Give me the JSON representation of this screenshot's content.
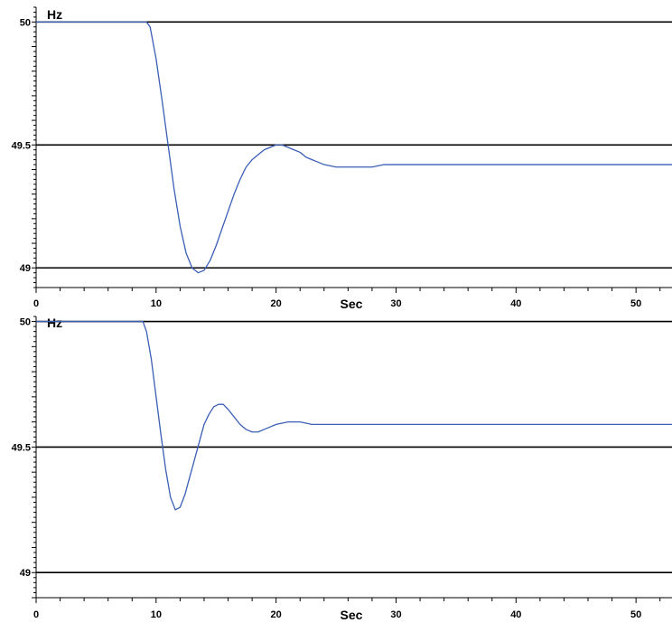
{
  "chart_data": [
    {
      "type": "line",
      "title": "",
      "xlabel": "Sec",
      "ylabel": "Hz",
      "xlim": [
        0,
        53
      ],
      "ylim": [
        48.92,
        50.06
      ],
      "x_ticks": [
        0,
        10,
        20,
        30,
        40,
        50
      ],
      "y_ticks": [
        49,
        49.5,
        50
      ],
      "grid_y": [
        49,
        49.5,
        50
      ],
      "series": [
        {
          "color": "#3a5fb5",
          "x": [
            0,
            9.2,
            9.5,
            10.0,
            10.5,
            11.0,
            11.5,
            12.0,
            12.5,
            13.0,
            13.5,
            14.0,
            14.5,
            15.0,
            15.5,
            16.0,
            16.5,
            17.0,
            17.5,
            18.0,
            18.5,
            19.0,
            19.5,
            20.0,
            20.5,
            21.0,
            21.5,
            22.0,
            22.5,
            23.0,
            23.5,
            24.0,
            25.0,
            26.0,
            27.0,
            28.0,
            29.0,
            30.0,
            32.0,
            35.0,
            40.0,
            45.0,
            50.0,
            53.0
          ],
          "y": [
            50,
            50,
            49.98,
            49.85,
            49.68,
            49.5,
            49.32,
            49.17,
            49.06,
            49.0,
            48.98,
            48.99,
            49.03,
            49.09,
            49.16,
            49.23,
            49.3,
            49.36,
            49.41,
            49.44,
            49.46,
            49.48,
            49.49,
            49.5,
            49.5,
            49.49,
            49.48,
            49.47,
            49.45,
            49.44,
            49.43,
            49.42,
            49.41,
            49.41,
            49.41,
            49.41,
            49.42,
            49.42,
            49.42,
            49.42,
            49.42,
            49.42,
            49.42,
            49.42
          ]
        }
      ]
    },
    {
      "type": "line",
      "title": "",
      "xlabel": "Sec",
      "ylabel": "Hz",
      "xlim": [
        0,
        53
      ],
      "ylim": [
        48.9,
        50.02
      ],
      "x_ticks": [
        0,
        10,
        20,
        30,
        40,
        50
      ],
      "y_ticks": [
        49,
        49.5,
        50
      ],
      "grid_y": [
        49,
        49.5,
        50
      ],
      "series": [
        {
          "color": "#3a5fb5",
          "x": [
            0,
            8.9,
            9.2,
            9.6,
            10.0,
            10.4,
            10.8,
            11.2,
            11.6,
            12.0,
            12.4,
            12.8,
            13.2,
            13.6,
            14.0,
            14.4,
            14.8,
            15.2,
            15.6,
            16.0,
            16.5,
            17.0,
            17.5,
            18.0,
            18.5,
            19.0,
            19.5,
            20.0,
            21.0,
            22.0,
            23.0,
            25.0,
            30.0,
            40.0,
            50.0,
            53.0
          ],
          "y": [
            50,
            50,
            49.96,
            49.85,
            49.7,
            49.55,
            49.41,
            49.3,
            49.25,
            49.26,
            49.31,
            49.38,
            49.45,
            49.52,
            49.59,
            49.63,
            49.66,
            49.67,
            49.67,
            49.65,
            49.62,
            49.59,
            49.57,
            49.56,
            49.56,
            49.57,
            49.58,
            49.59,
            49.6,
            49.6,
            49.59,
            49.59,
            49.59,
            49.59,
            49.59,
            49.59
          ]
        }
      ]
    }
  ]
}
